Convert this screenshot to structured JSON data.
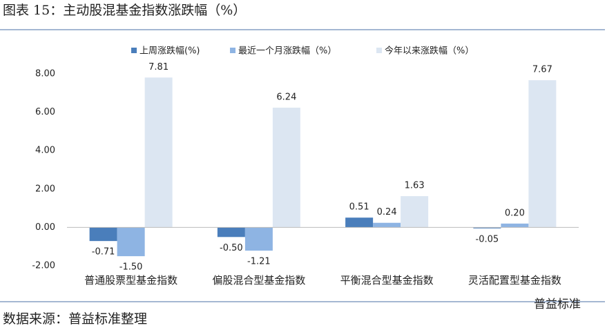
{
  "chart_data": {
    "type": "bar",
    "title": "图表 15：主动股混基金指数涨跌幅（%）",
    "source": "数据来源：普益标准整理",
    "watermark": "普益标准",
    "categories": [
      "普通股票型基金指数",
      "偏股混合型基金指数",
      "平衡混合型基金指数",
      "灵活配置型基金指数"
    ],
    "series": [
      {
        "name": "上周涨跌幅(%)",
        "color": "#4a7ebb",
        "values": [
          -0.71,
          -0.5,
          0.51,
          -0.05
        ],
        "value_labels": [
          "-0.71",
          "-0.50",
          "0.51",
          "-0.05"
        ]
      },
      {
        "name": "最近一个月涨跌幅（%）",
        "color": "#8eb4e3",
        "values": [
          -1.5,
          -1.21,
          0.24,
          0.2
        ],
        "value_labels": [
          "-1.50",
          "-1.21",
          "0.24",
          "0.20"
        ]
      },
      {
        "name": "今年以来涨跌幅（%）",
        "color": "#dce6f2",
        "values": [
          7.81,
          6.24,
          1.63,
          7.67
        ],
        "value_labels": [
          "7.81",
          "6.24",
          "1.63",
          "7.67"
        ]
      }
    ],
    "ylim": [
      -2,
      8
    ],
    "yticks": [
      {
        "value": -2,
        "label": "-2.00"
      },
      {
        "value": 0,
        "label": "0.00"
      },
      {
        "value": 2,
        "label": "2.00"
      },
      {
        "value": 4,
        "label": "4.00"
      },
      {
        "value": 6,
        "label": "6.00"
      },
      {
        "value": 8,
        "label": "8.00"
      }
    ],
    "grid": false,
    "legend": "top"
  }
}
